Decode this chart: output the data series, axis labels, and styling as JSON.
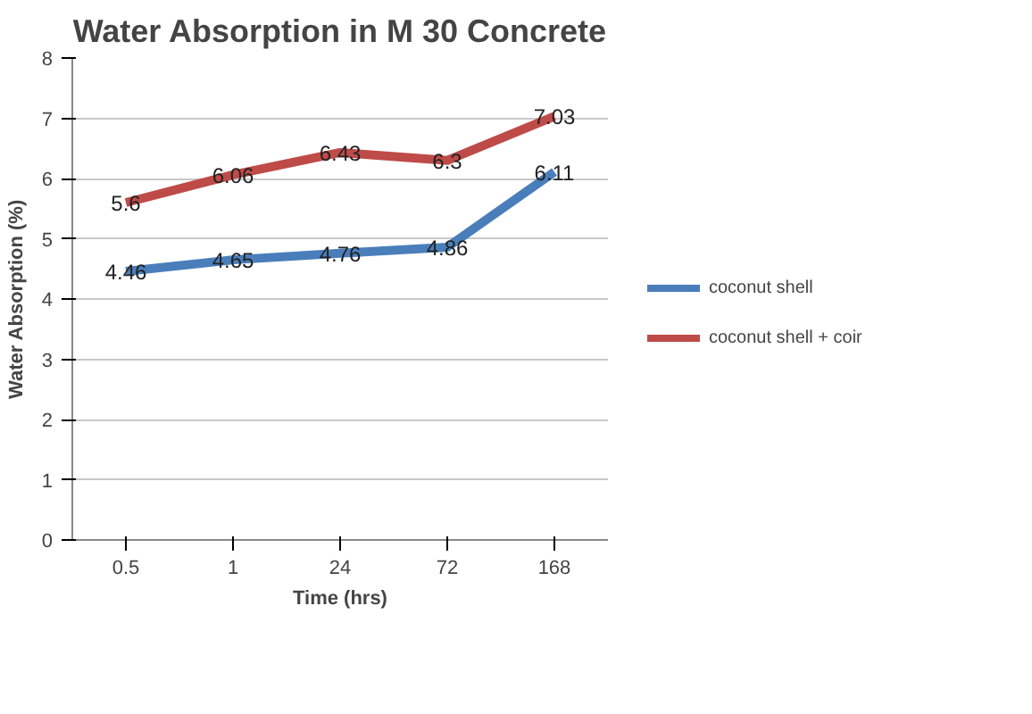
{
  "chart_data": {
    "type": "line",
    "title": "Water Absorption in M 30 Concrete",
    "xlabel": "Time (hrs)",
    "ylabel": "Water Absorption (%)",
    "categories": [
      "0.5",
      "1",
      "24",
      "72",
      "168"
    ],
    "series": [
      {
        "name": "coconut shell",
        "color": "#4a7ebb",
        "values": [
          4.46,
          4.65,
          4.76,
          4.86,
          6.11
        ]
      },
      {
        "name": "coconut shell + coir",
        "color": "#be4b48",
        "values": [
          5.6,
          6.06,
          6.43,
          6.3,
          7.03
        ]
      }
    ],
    "ylim": [
      0,
      8
    ],
    "yticks": [
      0,
      1,
      2,
      3,
      4,
      5,
      6,
      7,
      8
    ],
    "grid": "y",
    "legend": "right",
    "data_labels": true,
    "marker": "none",
    "line_style": "solid"
  }
}
